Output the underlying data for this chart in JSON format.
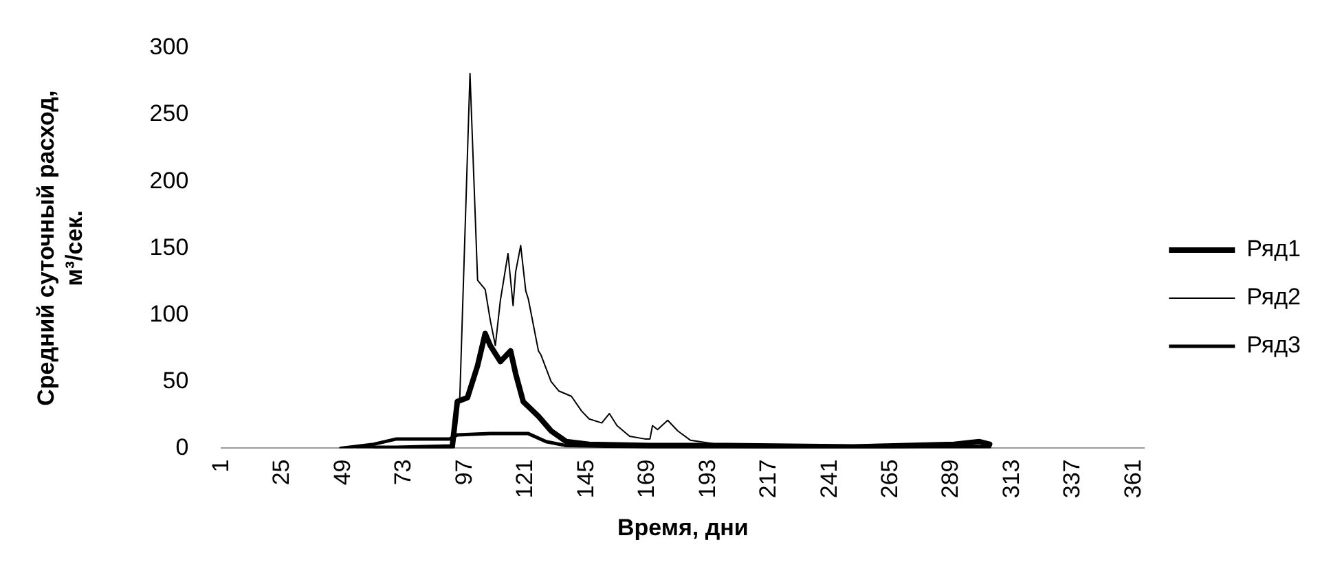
{
  "chart_data": {
    "type": "line",
    "xlabel": "Время, дни",
    "ylabel": "Средний суточный расход,\nм³/сек.",
    "xlim": [
      1,
      365
    ],
    "xticks": [
      1,
      25,
      49,
      73,
      97,
      121,
      145,
      169,
      193,
      217,
      241,
      265,
      289,
      313,
      337,
      361
    ],
    "ylim": [
      0,
      300
    ],
    "yticks": [
      0,
      50,
      100,
      150,
      200,
      250,
      300
    ],
    "grid": false,
    "legend": "right",
    "marker": "none",
    "series": [
      {
        "name": "Ряд1",
        "color": "#000000",
        "x": [
          55,
          70,
          92,
          94,
          98,
          102,
          105,
          107,
          111,
          115,
          117,
          120,
          126,
          131,
          137,
          146,
          170,
          200,
          250,
          290,
          300,
          304
        ],
        "values": [
          0,
          0,
          1,
          35,
          38,
          62,
          86,
          77,
          65,
          73,
          56,
          35,
          24,
          13,
          5,
          3,
          2,
          2,
          1,
          3,
          5,
          3
        ]
      },
      {
        "name": "Ряд2",
        "color": "#000000",
        "x": [
          61,
          92,
          95,
          99,
          102,
          105,
          107,
          109,
          111,
          114,
          116,
          117,
          119,
          121,
          122,
          126,
          127,
          131,
          134,
          139,
          143,
          146,
          151,
          154,
          157,
          162,
          168,
          170,
          171,
          173,
          177,
          181,
          186,
          200,
          250,
          300,
          304
        ],
        "values": [
          0,
          0,
          39,
          281,
          126,
          119,
          96,
          77,
          111,
          146,
          107,
          132,
          152,
          118,
          112,
          73,
          70,
          50,
          43,
          39,
          28,
          22,
          19,
          26,
          17,
          9,
          7,
          7,
          17,
          14,
          21,
          13,
          6,
          2,
          1,
          2,
          2
        ]
      },
      {
        "name": "Ряд3",
        "color": "#000000",
        "x": [
          48,
          61,
          70,
          91,
          94,
          107,
          122,
          129,
          137,
          170,
          250,
          304
        ],
        "values": [
          0,
          3,
          7,
          7,
          10,
          11,
          11,
          5,
          2,
          1,
          1,
          1
        ]
      }
    ]
  }
}
